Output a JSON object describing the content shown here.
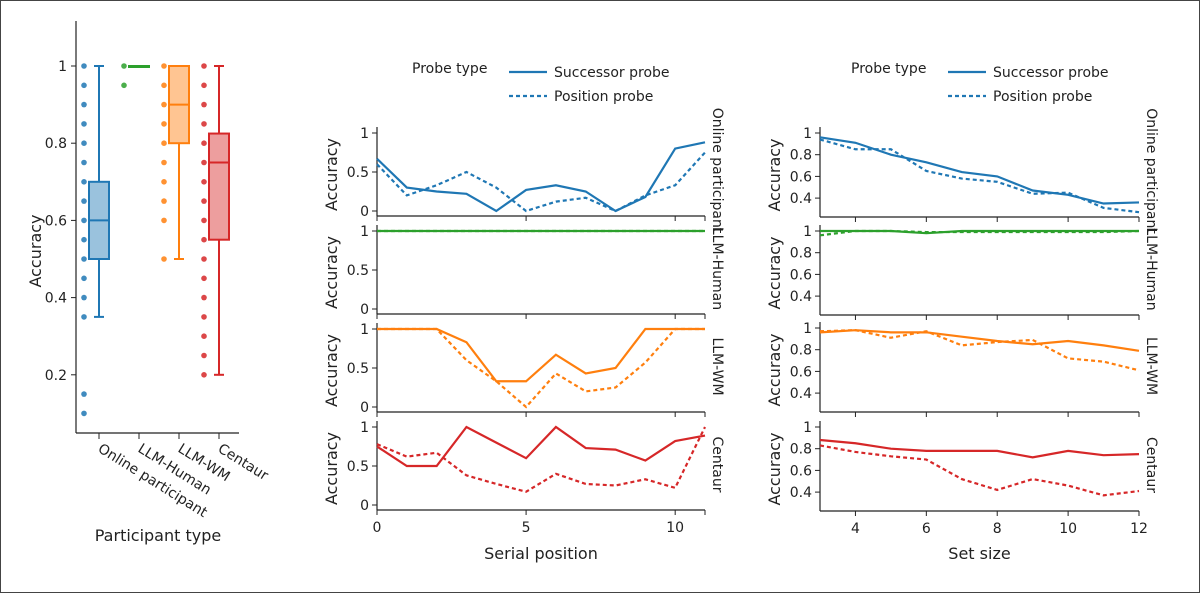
{
  "colors": {
    "Online participant": "#1f77b4",
    "LLM-Human": "#2ca02c",
    "LLM-WM": "#ff7f0e",
    "Centaur": "#d62728"
  },
  "chart_data": [
    {
      "type": "box",
      "xlabel": "Participant type",
      "ylabel": "Accuracy",
      "categories": [
        "Online participant",
        "LLM-Human",
        "LLM-WM",
        "Centaur"
      ],
      "yticks": [
        0.2,
        0.4,
        0.6,
        0.8,
        1
      ],
      "ytick_labels": [
        "0.2",
        "0.4",
        "0.6",
        "0.8",
        "1"
      ],
      "boxes": [
        {
          "name": "Online participant",
          "min": 0.35,
          "q1": 0.5,
          "median": 0.6,
          "q3": 0.7,
          "max": 1.0,
          "points": [
            1,
            0.95,
            0.9,
            0.85,
            0.8,
            0.75,
            0.7,
            0.65,
            0.6,
            0.55,
            0.5,
            0.45,
            0.4,
            0.35,
            0.15,
            0.1
          ]
        },
        {
          "name": "LLM-Human",
          "min": 1.0,
          "q1": 1.0,
          "median": 1.0,
          "q3": 1.0,
          "max": 1.0,
          "points": [
            1,
            0.95
          ]
        },
        {
          "name": "LLM-WM",
          "min": 0.5,
          "q1": 0.8,
          "median": 0.9,
          "q3": 1.0,
          "max": 1.0,
          "points": [
            1,
            0.95,
            0.9,
            0.85,
            0.8,
            0.75,
            0.7,
            0.65,
            0.6,
            0.5
          ]
        },
        {
          "name": "Centaur",
          "min": 0.2,
          "q1": 0.55,
          "median": 0.75,
          "q3": 0.825,
          "max": 1.0,
          "points": [
            1,
            0.95,
            0.9,
            0.85,
            0.8,
            0.75,
            0.7,
            0.65,
            0.6,
            0.55,
            0.5,
            0.45,
            0.4,
            0.35,
            0.3,
            0.25,
            0.2
          ]
        }
      ]
    },
    {
      "type": "line",
      "xlabel": "Serial position",
      "ylabel": "Accuracy",
      "legend_title": "Probe type",
      "legend": [
        "Successor probe",
        "Position probe"
      ],
      "legend_placement": "top",
      "x": [
        0,
        1,
        2,
        3,
        4,
        5,
        6,
        7,
        8,
        9,
        10,
        11
      ],
      "xticks": [
        0,
        5,
        10
      ],
      "yticks": [
        0,
        0.5,
        1
      ],
      "ytick_labels": [
        "0",
        "0.5",
        "1"
      ],
      "ylim": [
        0,
        1
      ],
      "facets": [
        {
          "name": "Online participant",
          "successor": [
            0.67,
            0.3,
            0.25,
            0.22,
            0,
            0.27,
            0.33,
            0.25,
            0,
            0.18,
            0.8,
            0.88
          ],
          "position": [
            0.6,
            0.2,
            0.33,
            0.5,
            0.3,
            0,
            0.12,
            0.17,
            0,
            0.2,
            0.33,
            0.75
          ]
        },
        {
          "name": "LLM-Human",
          "successor": [
            1,
            1,
            1,
            1,
            1,
            1,
            1,
            1,
            1,
            1,
            1,
            1
          ],
          "position": [
            1,
            1,
            1,
            1,
            1,
            1,
            1,
            1,
            1,
            1,
            1,
            1
          ]
        },
        {
          "name": "LLM-WM",
          "successor": [
            1,
            1,
            1,
            0.83,
            0.33,
            0.33,
            0.67,
            0.43,
            0.5,
            1,
            1,
            1
          ],
          "position": [
            1,
            1,
            1,
            0.6,
            0.33,
            0,
            0.43,
            0.2,
            0.25,
            0.57,
            1,
            1
          ]
        },
        {
          "name": "Centaur",
          "successor": [
            0.75,
            0.5,
            0.5,
            1,
            0.8,
            0.6,
            1,
            0.73,
            0.71,
            0.57,
            0.82,
            0.89
          ],
          "position": [
            0.78,
            0.62,
            0.67,
            0.38,
            0.27,
            0.17,
            0.4,
            0.27,
            0.25,
            0.33,
            0.22,
            1.0
          ]
        }
      ]
    },
    {
      "type": "line",
      "xlabel": "Set size",
      "ylabel": "Accuracy",
      "legend_title": "Probe type",
      "legend": [
        "Successor probe",
        "Position probe"
      ],
      "legend_placement": "top",
      "x": [
        3,
        4,
        5,
        6,
        7,
        8,
        9,
        10,
        11,
        12
      ],
      "xticks": [
        4,
        6,
        8,
        10,
        12
      ],
      "yticks": [
        0.4,
        0.6,
        0.8,
        1
      ],
      "ytick_labels": [
        "0.4",
        "0.6",
        "0.8",
        "1"
      ],
      "ylim": [
        0.22,
        1.02
      ],
      "facets": [
        {
          "name": "Online participant",
          "successor": [
            0.96,
            0.91,
            0.8,
            0.73,
            0.64,
            0.6,
            0.47,
            0.43,
            0.35,
            0.36
          ],
          "position": [
            0.94,
            0.85,
            0.85,
            0.65,
            0.58,
            0.55,
            0.44,
            0.45,
            0.31,
            0.27
          ]
        },
        {
          "name": "LLM-Human",
          "successor": [
            1,
            1,
            1,
            0.98,
            1,
            1,
            1,
            1,
            1,
            1
          ],
          "position": [
            0.96,
            1,
            1,
            0.99,
            0.99,
            0.99,
            0.99,
            0.99,
            0.99,
            1
          ]
        },
        {
          "name": "LLM-WM",
          "successor": [
            0.96,
            0.98,
            0.96,
            0.96,
            0.92,
            0.88,
            0.85,
            0.88,
            0.84,
            0.79
          ],
          "position": [
            0.97,
            0.98,
            0.91,
            0.97,
            0.84,
            0.87,
            0.89,
            0.72,
            0.69,
            0.61
          ]
        },
        {
          "name": "Centaur",
          "successor": [
            0.88,
            0.85,
            0.8,
            0.78,
            0.78,
            0.78,
            0.72,
            0.78,
            0.74,
            0.75
          ],
          "position": [
            0.83,
            0.77,
            0.73,
            0.7,
            0.52,
            0.42,
            0.52,
            0.46,
            0.37,
            0.41
          ]
        }
      ]
    }
  ]
}
